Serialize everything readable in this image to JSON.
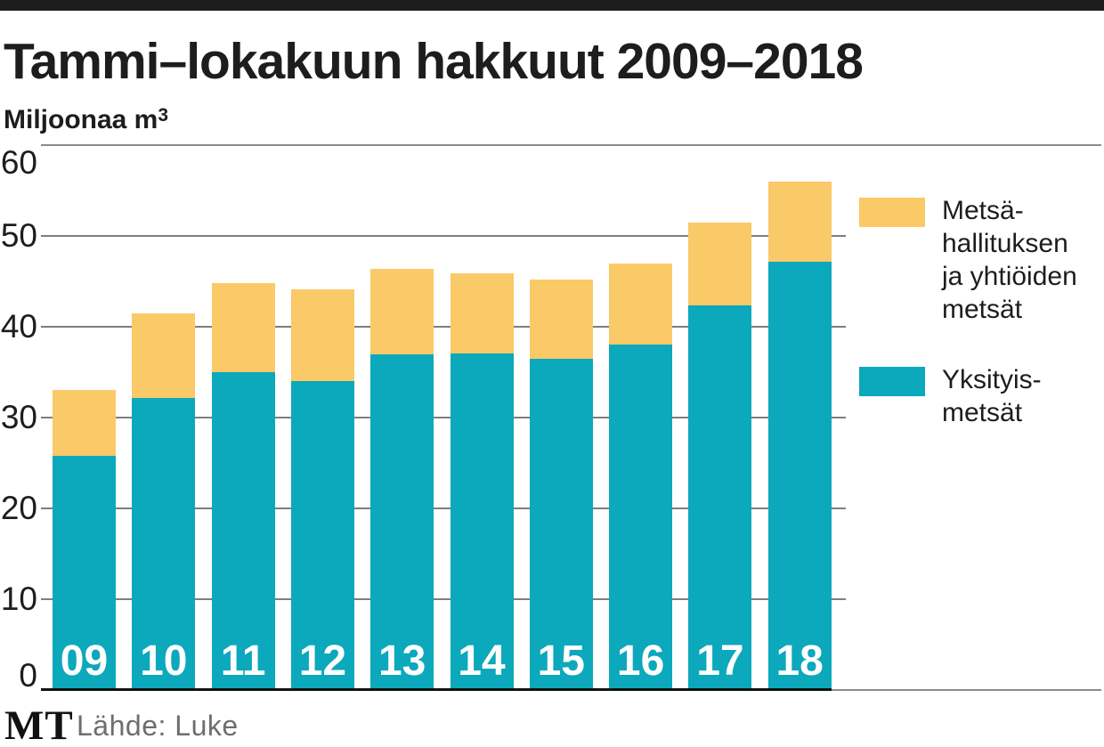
{
  "header": {
    "title": "Tammi–lokakuun hakkuut 2009–2018",
    "unit_base": "Miljoonaa m",
    "unit_sup": "3"
  },
  "legend": {
    "items": [
      {
        "id": "state-and-company-forests",
        "label": "Metsä-\nhallituksen\nja yhtiöiden\nmetsät",
        "color": "#fac968"
      },
      {
        "id": "private-forests",
        "label": "Yksityis-\nmetsät",
        "color": "#0ca8bc"
      }
    ]
  },
  "footer": {
    "logo": "MT",
    "source": "Lähde: Luke"
  },
  "colors": {
    "teal": "#0ca8bc",
    "yellow": "#fac968",
    "gridline": "#7e7e7e",
    "rule": "#8a8a8a",
    "axis": "#121212",
    "text": "#1d1d1b",
    "source_text": "#6e6e6e",
    "bar_label": "#ffffff"
  },
  "chart_data": {
    "type": "bar",
    "stacked": true,
    "title": "Tammi–lokakuun hakkuut 2009–2018",
    "ylabel": "Miljoonaa m³",
    "categories": [
      "09",
      "10",
      "11",
      "12",
      "13",
      "14",
      "15",
      "16",
      "17",
      "18"
    ],
    "series": [
      {
        "name": "Yksityismetsät",
        "color": "#0ca8bc",
        "values": [
          25.8,
          32.2,
          35.0,
          34.0,
          37.0,
          37.1,
          36.5,
          38.0,
          42.4,
          47.2
        ]
      },
      {
        "name": "Metsähallituksen ja yhtiöiden metsät",
        "color": "#fac968",
        "values": [
          7.2,
          9.3,
          9.8,
          10.1,
          9.4,
          8.8,
          8.7,
          9.0,
          9.1,
          8.8
        ]
      }
    ],
    "totals": [
      33.0,
      41.5,
      44.8,
      44.1,
      46.4,
      45.9,
      45.2,
      47.0,
      51.5,
      56.0
    ],
    "ylim": [
      0,
      60
    ],
    "yticks": [
      0,
      10,
      20,
      30,
      40,
      50,
      60
    ],
    "grid": true,
    "legend_position": "right"
  }
}
